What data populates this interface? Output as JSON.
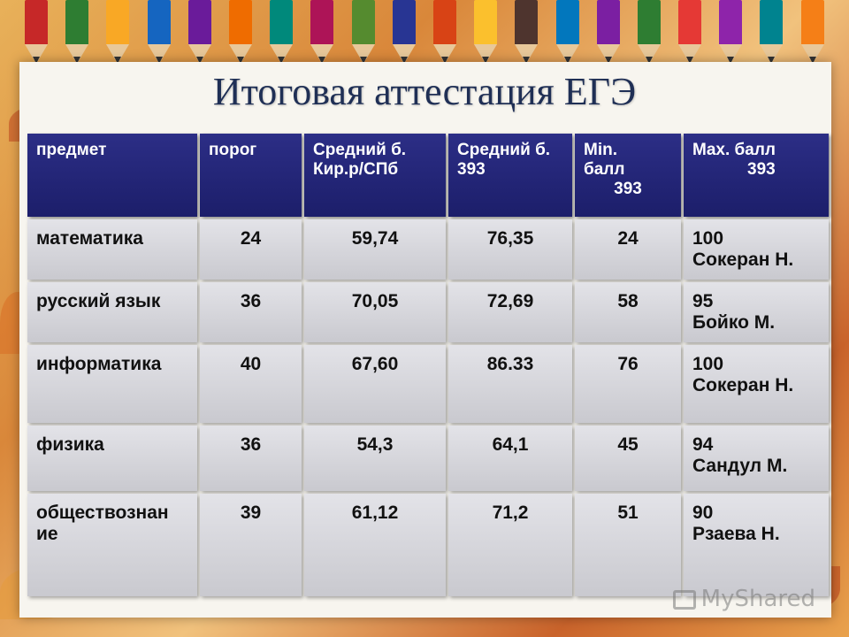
{
  "title": "Итоговая аттестация ЕГЭ",
  "table": {
    "headers": [
      [
        "предмет"
      ],
      [
        "порог"
      ],
      [
        "Средний б.",
        "Кир.р/СПб"
      ],
      [
        "Средний б.",
        "393"
      ],
      [
        "Min.",
        "балл",
        "393"
      ],
      [
        "Max. балл",
        "393"
      ]
    ],
    "rows": [
      {
        "subject": [
          "математика"
        ],
        "threshold": "24",
        "avg_city": "59,74",
        "avg_school": "76,35",
        "min": "24",
        "max": [
          "100",
          "Сокеран Н."
        ]
      },
      {
        "subject": [
          "русский язык"
        ],
        "threshold": "36",
        "avg_city": "70,05",
        "avg_school": "72,69",
        "min": "58",
        "max": [
          "95",
          "Бойко М."
        ]
      },
      {
        "subject": [
          "информатика"
        ],
        "threshold": "40",
        "avg_city": "67,60",
        "avg_school": "86.33",
        "min": "76",
        "max": [
          "100",
          "Сокеран Н."
        ]
      },
      {
        "subject": [
          "физика"
        ],
        "threshold": "36",
        "avg_city": "54,3",
        "avg_school": "64,1",
        "min": "45",
        "max": [
          "94",
          "Сандул М."
        ]
      },
      {
        "subject": [
          "обществознан",
          "ие"
        ],
        "threshold": "39",
        "avg_city": "61,12",
        "avg_school": "71,2",
        "min": "51",
        "max": [
          "90",
          "Рзаева Н."
        ]
      }
    ]
  },
  "watermark": {
    "text": "MyShared",
    "icon": "myshared-logo-icon"
  },
  "colors": {
    "header_bg": "#22247a",
    "cell_bg": "#d6d6dc",
    "title": "#1f2f55"
  }
}
